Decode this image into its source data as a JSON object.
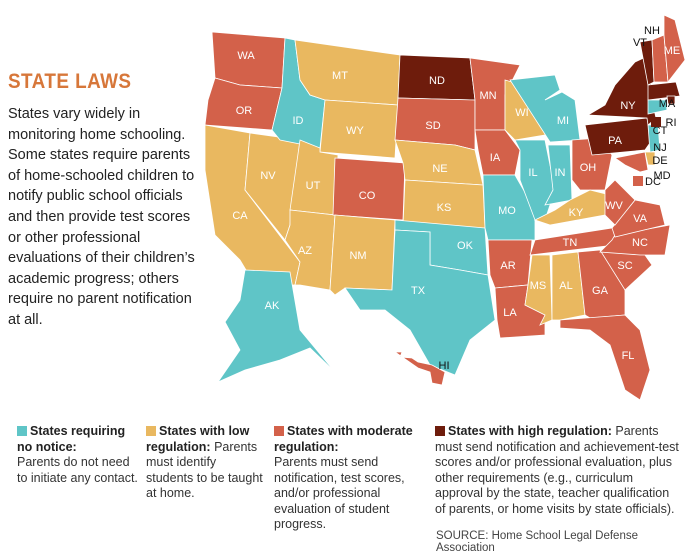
{
  "title": "STATE LAWS",
  "intro": "States vary widely in monitoring home schooling. Some states require parents of home-schooled children to notify public school officials and then provide test scores or other professional evaluations of their children’s academic progress; others require no parent notification at all.",
  "colors": {
    "none": "#5fc5c7",
    "low": "#e9b860",
    "moderate": "#d3614a",
    "high": "#6e1c0c"
  },
  "legend": [
    {
      "key": "none",
      "heading": "States requiring no notice:",
      "text": "Parents do not need to initiate any contact."
    },
    {
      "key": "low",
      "heading": "States with low regulation:",
      "text": "Parents must identify students to be taught at home."
    },
    {
      "key": "moderate",
      "heading": "States with moderate regulation:",
      "text": "Parents must send notification, test scores, and/or professional evaluation of student progress."
    },
    {
      "key": "high",
      "heading": "States with high regulation:",
      "text": "Parents must send notification and achievement-test scores and/or professional evaluation, plus other requirements (e.g., curriculum approval by the state, teacher qualification of parents, or home visits by state officials)."
    }
  ],
  "states": {
    "WA": "moderate",
    "OR": "moderate",
    "CA": "low",
    "NV": "low",
    "ID": "none",
    "MT": "low",
    "WY": "low",
    "UT": "low",
    "AZ": "low",
    "CO": "moderate",
    "NM": "low",
    "ND": "high",
    "SD": "moderate",
    "NE": "low",
    "KS": "low",
    "OK": "none",
    "TX": "none",
    "MN": "moderate",
    "IA": "moderate",
    "MO": "none",
    "AR": "moderate",
    "LA": "moderate",
    "WI": "low",
    "IL": "none",
    "MI": "none",
    "IN": "none",
    "OH": "moderate",
    "KY": "low",
    "TN": "moderate",
    "MS": "low",
    "AL": "low",
    "GA": "moderate",
    "FL": "moderate",
    "SC": "moderate",
    "NC": "moderate",
    "VA": "moderate",
    "WV": "moderate",
    "PA": "high",
    "NY": "high",
    "VT": "high",
    "NH": "moderate",
    "ME": "moderate",
    "MA": "high",
    "RI": "high",
    "CT": "none",
    "NJ": "none",
    "DE": "low",
    "MD": "moderate",
    "DC": "moderate",
    "AK": "none",
    "HI": "moderate"
  },
  "source": "SOURCE: Home School Legal Defense Association"
}
